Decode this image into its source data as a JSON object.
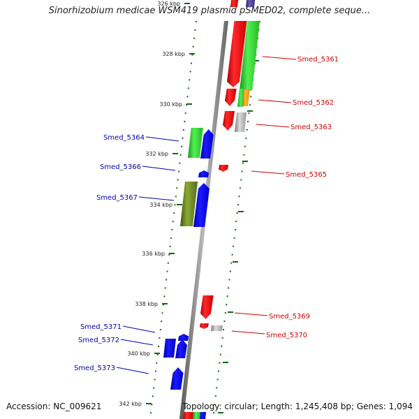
{
  "title": "Sinorhizobium medicae WSM419 plasmid pSMED02, complete seque...",
  "footer": {
    "accession": "Accession: NC_009621",
    "summary": "Topology: circular; Length: 1,245,408 bp; Genes: 1,094"
  },
  "colors": {
    "forward_label": "#cc0000",
    "reverse_label": "#0000aa",
    "red": "#ff0000",
    "blue": "#0000ee",
    "green": "#22cc22",
    "olive": "#668822",
    "orange": "#ff9900",
    "gray": "#999999",
    "purple": "#4a3f8c",
    "tick_green": "#116611"
  },
  "axis": {
    "ticks": [
      {
        "label": "326 kbp"
      },
      {
        "label": "328 kbp"
      },
      {
        "label": "330 kbp"
      },
      {
        "label": "332 kbp"
      },
      {
        "label": "334 kbp"
      },
      {
        "label": "336 kbp"
      },
      {
        "label": "338 kbp"
      },
      {
        "label": "340 kbp"
      },
      {
        "label": "342 kbp"
      }
    ]
  },
  "genes": [
    {
      "name": "Smed_5361",
      "strand": "forward"
    },
    {
      "name": "Smed_5362",
      "strand": "forward"
    },
    {
      "name": "Smed_5363",
      "strand": "forward"
    },
    {
      "name": "Smed_5364",
      "strand": "reverse"
    },
    {
      "name": "Smed_5365",
      "strand": "forward"
    },
    {
      "name": "Smed_5366",
      "strand": "reverse"
    },
    {
      "name": "Smed_5367",
      "strand": "reverse"
    },
    {
      "name": "Smed_5369",
      "strand": "forward"
    },
    {
      "name": "Smed_5370",
      "strand": "forward"
    },
    {
      "name": "Smed_5371",
      "strand": "reverse"
    },
    {
      "name": "Smed_5372",
      "strand": "reverse"
    },
    {
      "name": "Smed_5373",
      "strand": "reverse"
    }
  ]
}
